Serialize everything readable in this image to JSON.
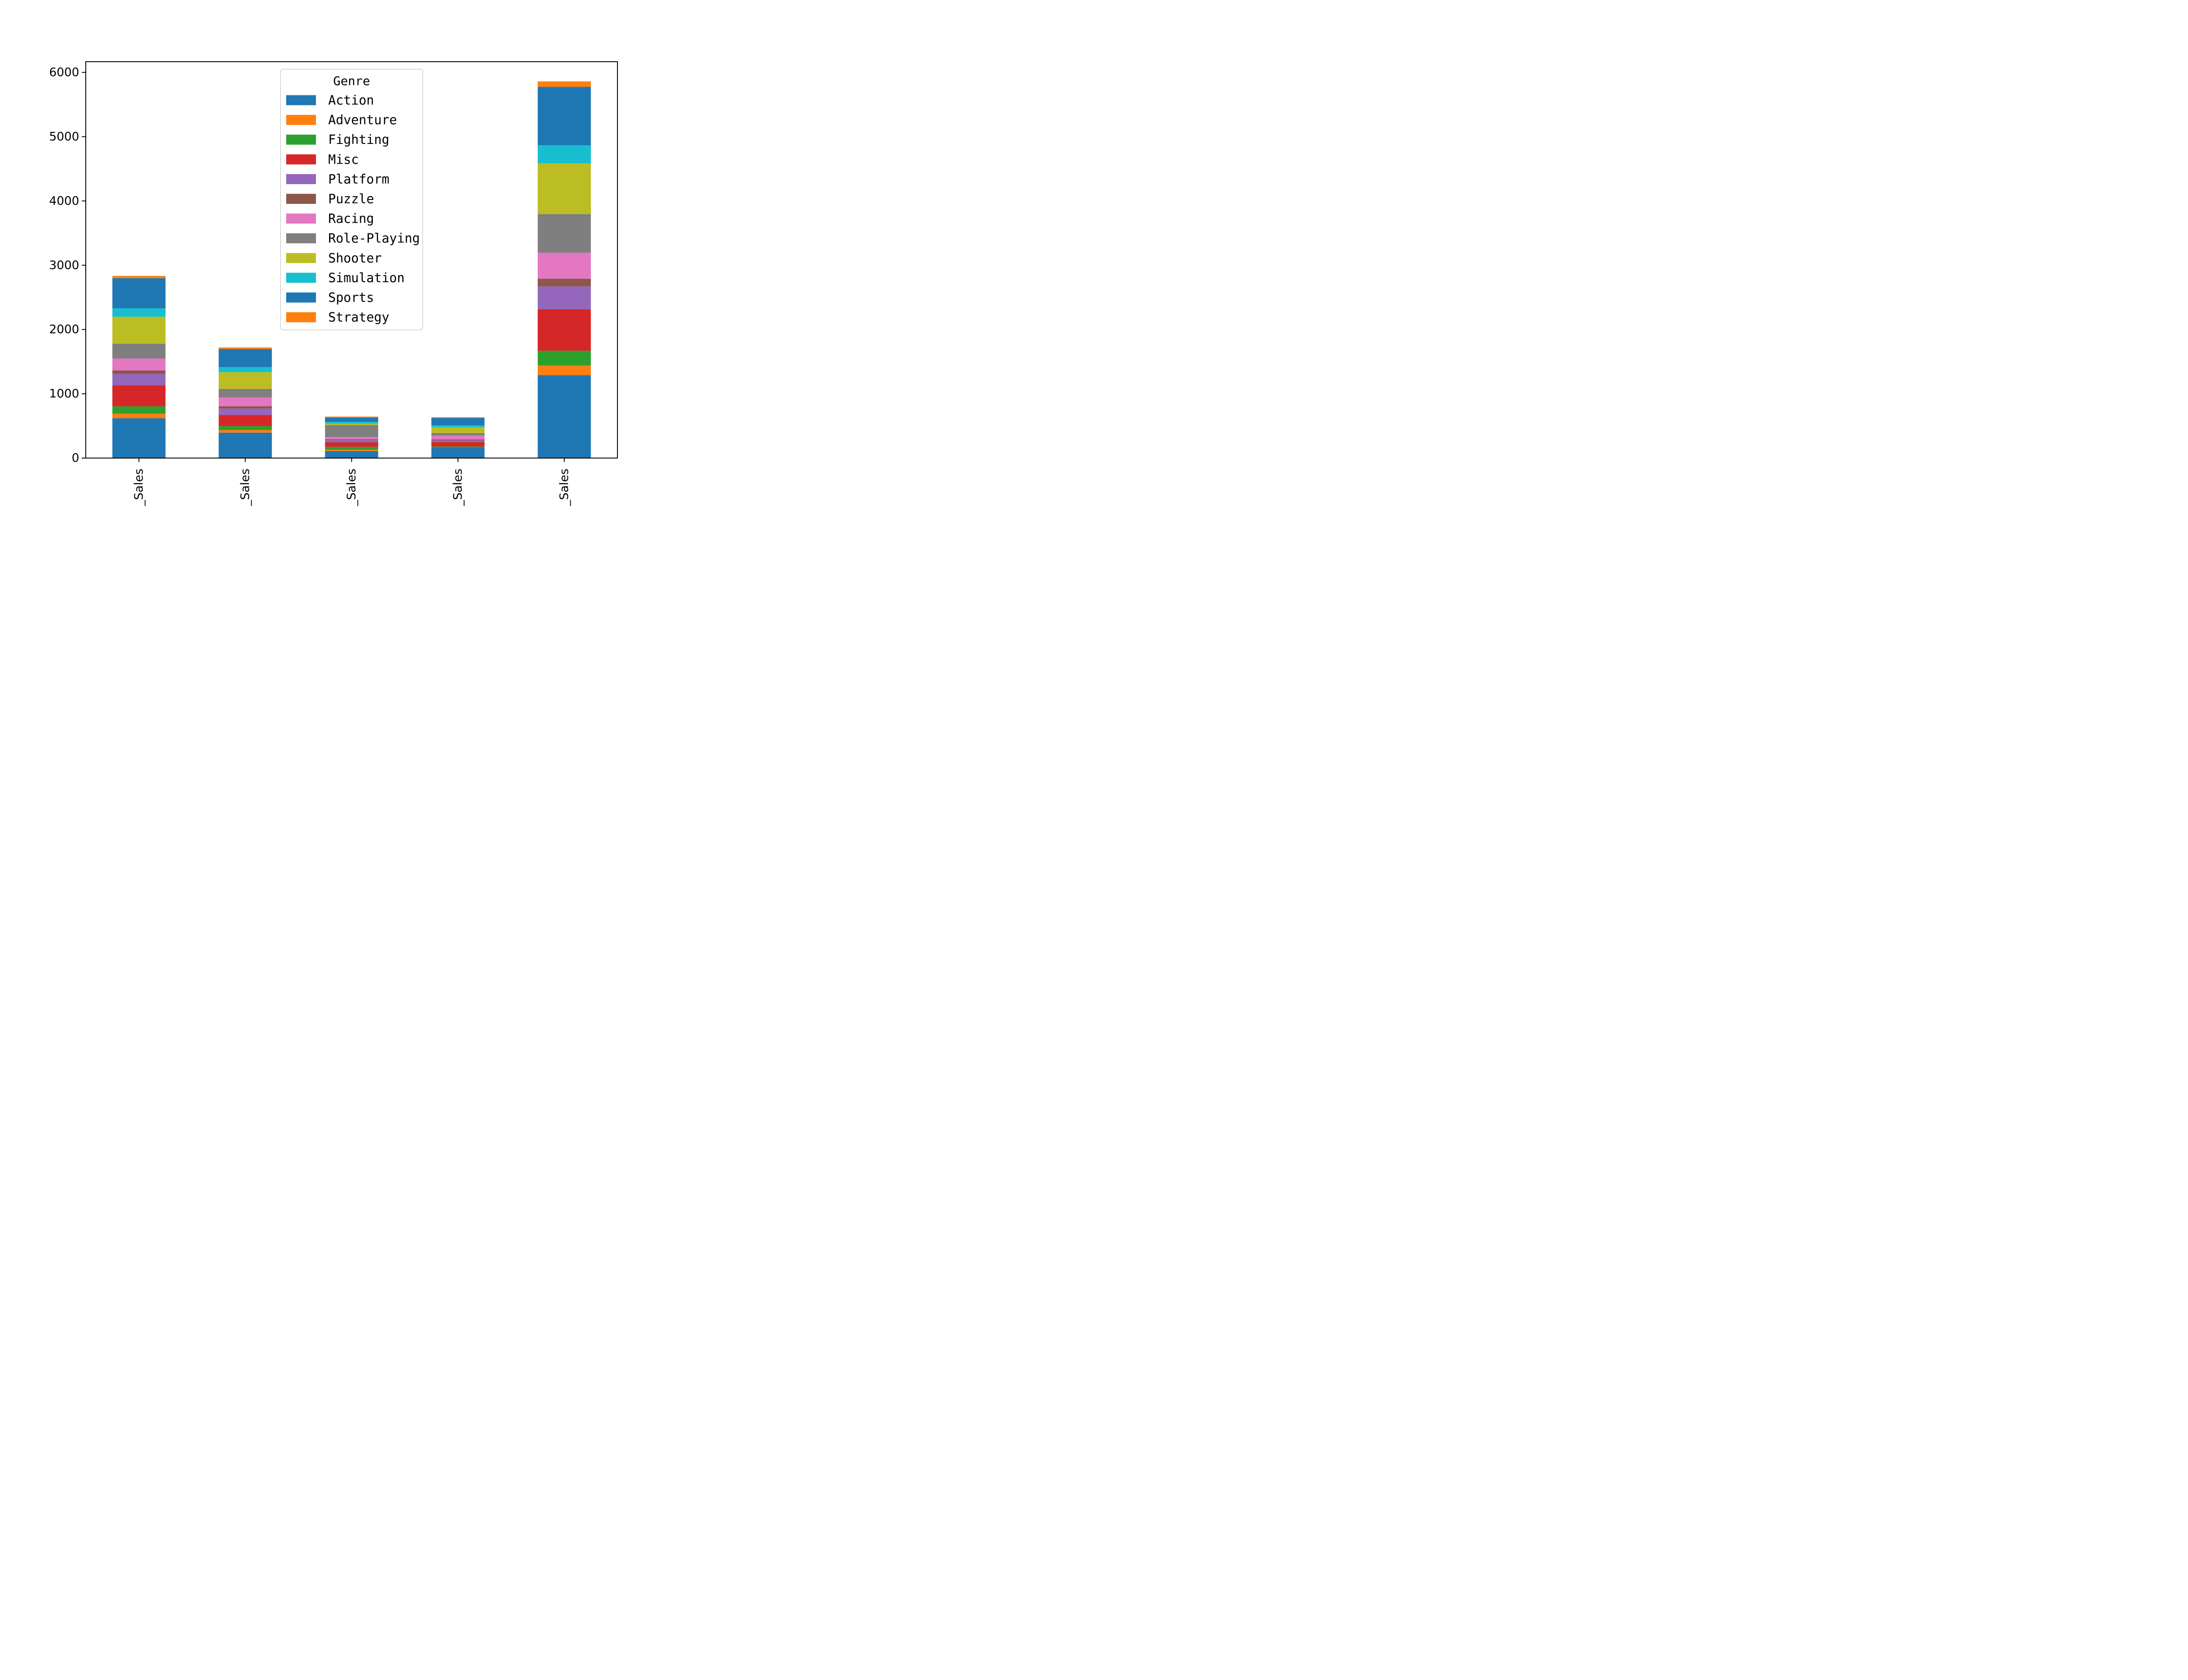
{
  "chart_data": {
    "type": "bar",
    "stacked": true,
    "title": "",
    "xlabel": "",
    "ylabel": "",
    "categories": [
      "_Sales",
      "_Sales",
      "_Sales",
      "_Sales",
      "_Sales"
    ],
    "ylim": [
      0,
      6200
    ],
    "yticks": [
      0,
      1000,
      2000,
      3000,
      4000,
      5000,
      6000
    ],
    "grid": false,
    "legend": {
      "title": "Genre",
      "placement": "upper-center"
    },
    "series": [
      {
        "name": "Action",
        "color": "#1f77b4",
        "values": [
          619,
          396,
          110,
          160,
          1290
        ]
      },
      {
        "name": "Adventure",
        "color": "#ff7f0e",
        "values": [
          70,
          40,
          20,
          0,
          150
        ]
      },
      {
        "name": "Fighting",
        "color": "#2ca02c",
        "values": [
          115,
          60,
          45,
          20,
          230
        ]
      },
      {
        "name": "Misc",
        "color": "#d62728",
        "values": [
          330,
          175,
          70,
          70,
          645
        ]
      },
      {
        "name": "Platform",
        "color": "#9467bd",
        "values": [
          175,
          100,
          35,
          25,
          355
        ]
      },
      {
        "name": "Puzzle",
        "color": "#8c564b",
        "values": [
          55,
          35,
          15,
          15,
          120
        ]
      },
      {
        "name": "Racing",
        "color": "#e377c2",
        "values": [
          185,
          135,
          30,
          60,
          405
        ]
      },
      {
        "name": "Role-Playing",
        "color": "#7f7f7f",
        "values": [
          230,
          135,
          190,
          40,
          600
        ]
      },
      {
        "name": "Shooter",
        "color": "#bcbd22",
        "values": [
          420,
          260,
          20,
          90,
          790
        ]
      },
      {
        "name": "Simulation",
        "color": "#17becf",
        "values": [
          130,
          80,
          30,
          30,
          280
        ]
      },
      {
        "name": "Sports",
        "color": "#1f77b4",
        "values": [
          470,
          280,
          65,
          115,
          910
        ]
      },
      {
        "name": "Strategy",
        "color": "#ff7f0e",
        "values": [
          35,
          25,
          15,
          10,
          85
        ]
      }
    ]
  }
}
